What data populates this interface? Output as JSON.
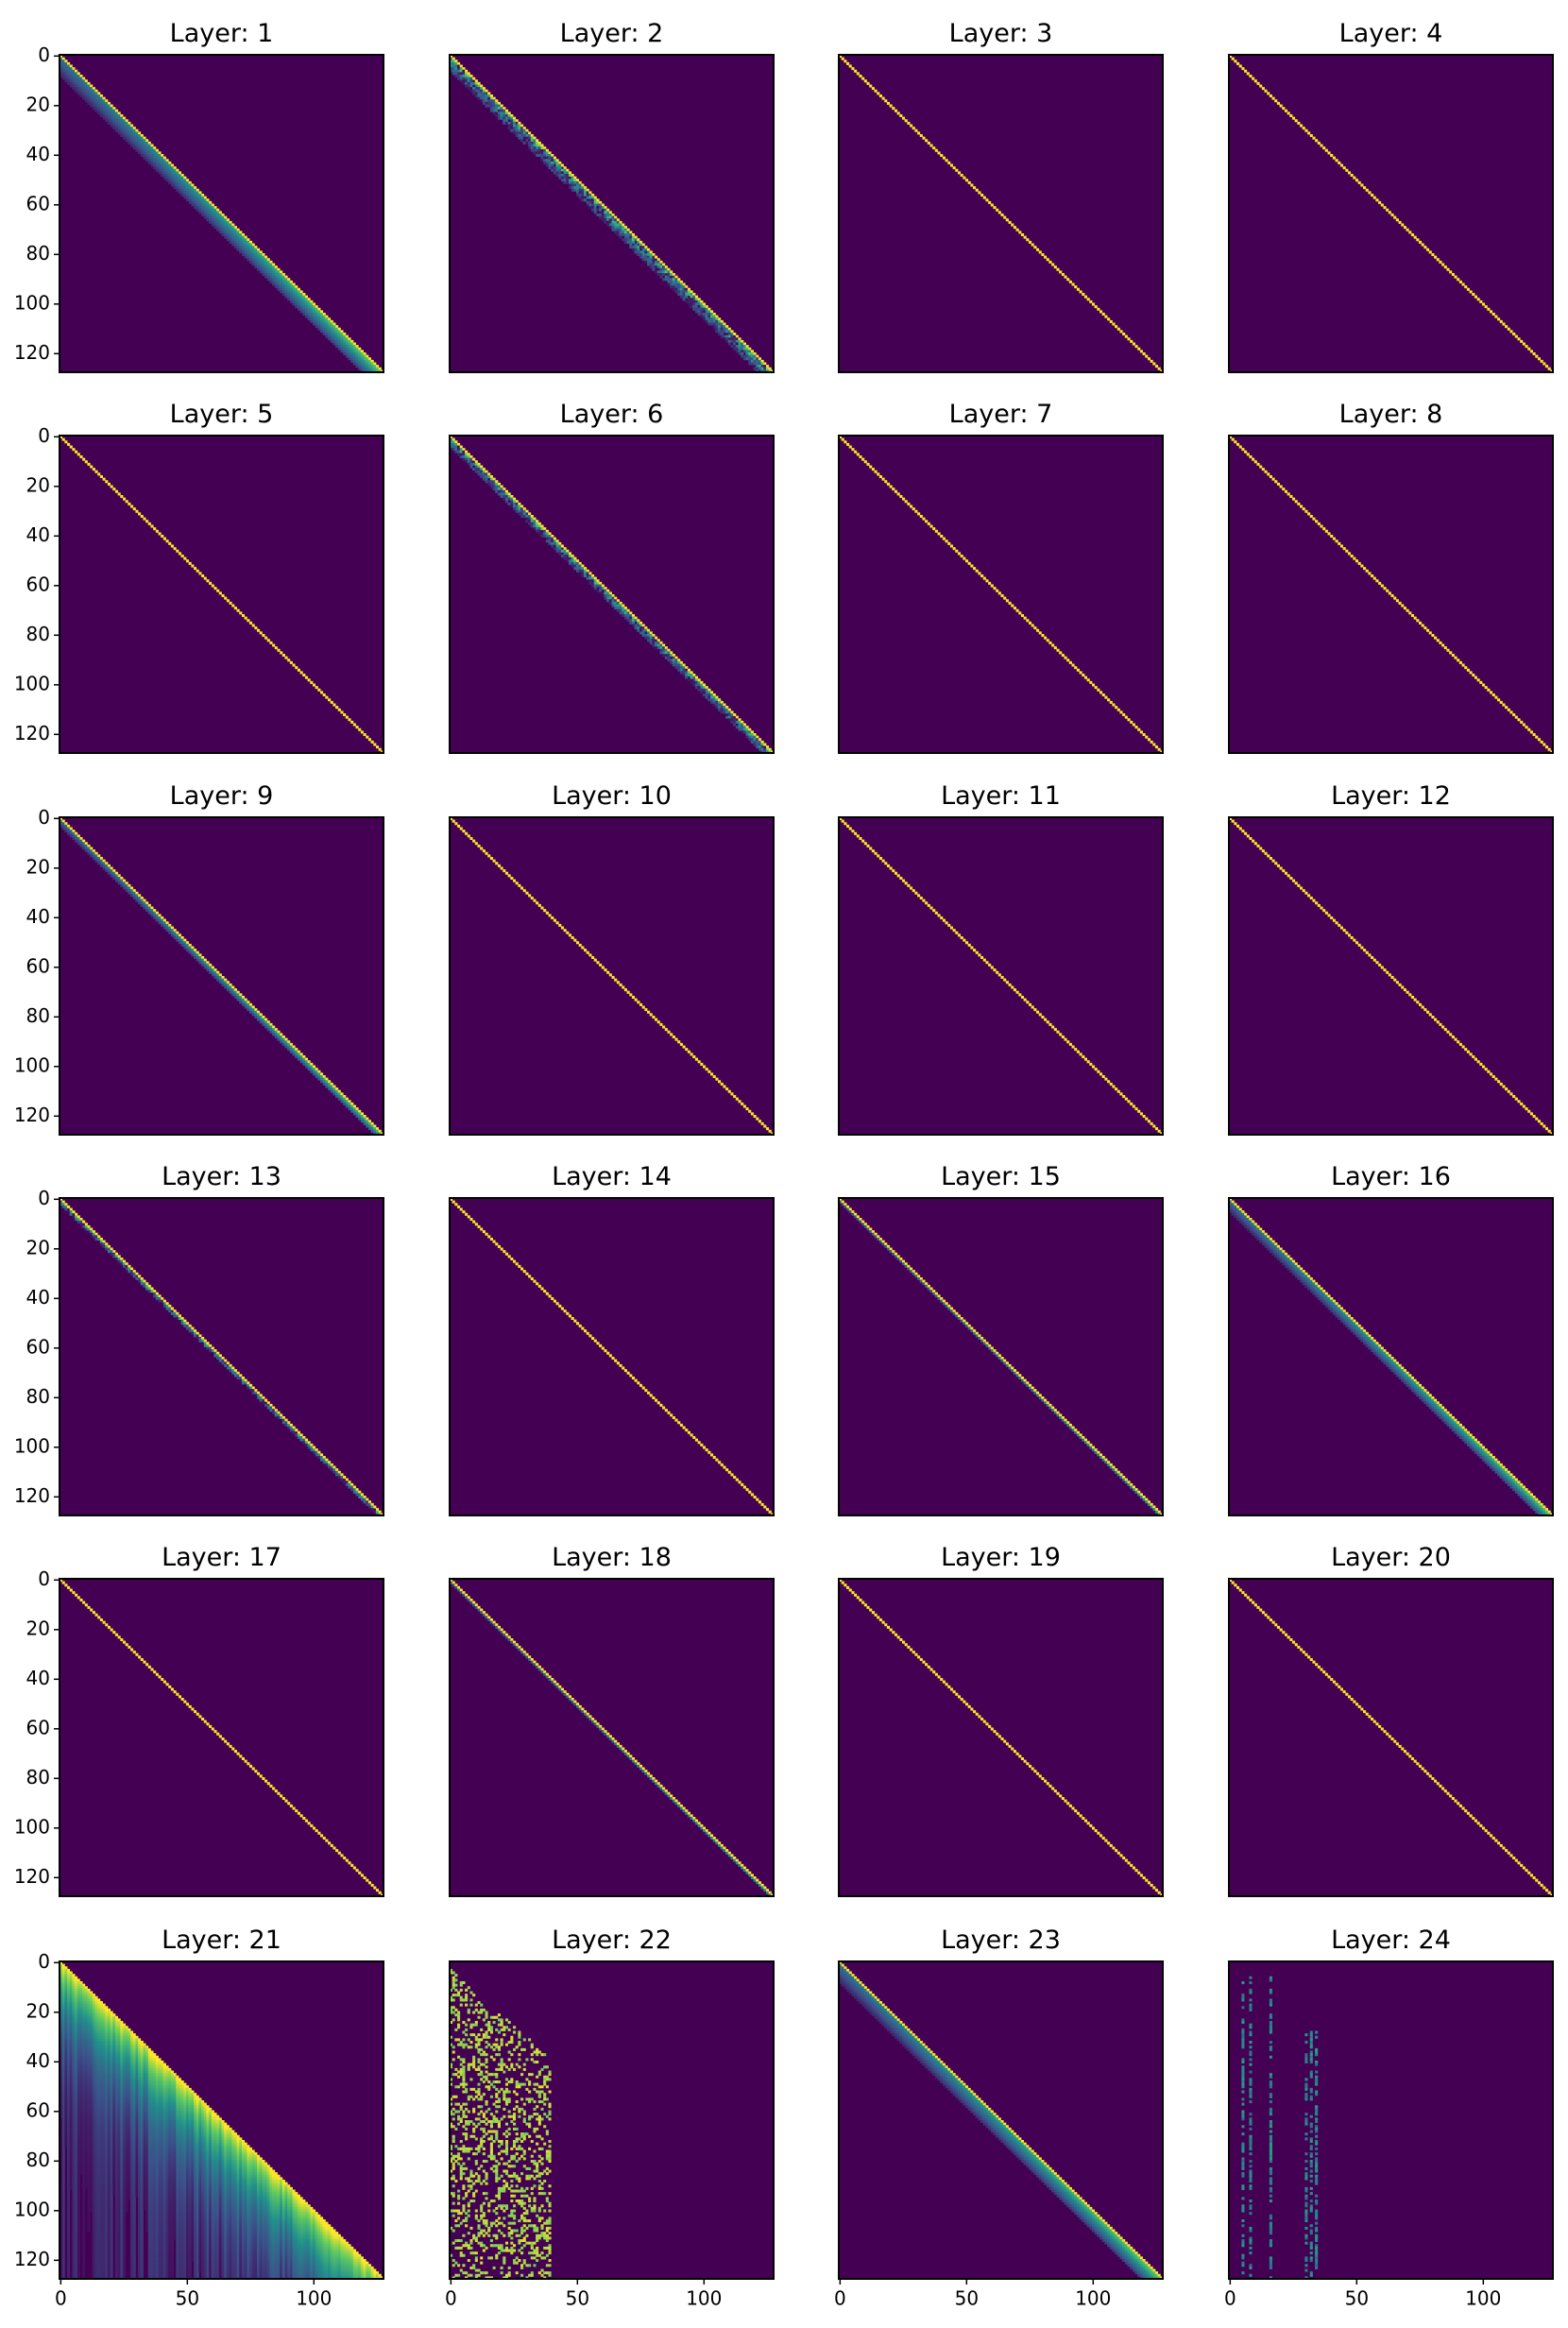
{
  "colormap": [
    "#440154",
    "#3b528b",
    "#21918c",
    "#5ec962",
    "#fde725"
  ],
  "chart_data": [
    {
      "type": "heatmap",
      "title": "Layer: 1",
      "size": 128,
      "pattern": "band",
      "band": 9,
      "yticks": [
        0,
        20,
        40,
        60,
        80,
        100,
        120
      ]
    },
    {
      "type": "heatmap",
      "title": "Layer: 2",
      "size": 128,
      "pattern": "noisy",
      "band": 7
    },
    {
      "type": "heatmap",
      "title": "Layer: 3",
      "size": 128,
      "pattern": "band",
      "band": 1
    },
    {
      "type": "heatmap",
      "title": "Layer: 4",
      "size": 128,
      "pattern": "band",
      "band": 1
    },
    {
      "type": "heatmap",
      "title": "Layer: 5",
      "size": 128,
      "pattern": "band",
      "band": 1,
      "yticks": [
        0,
        20,
        40,
        60,
        80,
        100,
        120
      ]
    },
    {
      "type": "heatmap",
      "title": "Layer: 6",
      "size": 128,
      "pattern": "noisy",
      "band": 5
    },
    {
      "type": "heatmap",
      "title": "Layer: 7",
      "size": 128,
      "pattern": "band",
      "band": 1
    },
    {
      "type": "heatmap",
      "title": "Layer: 8",
      "size": 128,
      "pattern": "band",
      "band": 1
    },
    {
      "type": "heatmap",
      "title": "Layer: 9",
      "size": 128,
      "pattern": "band",
      "band": 4,
      "yticks": [
        0,
        20,
        40,
        60,
        80,
        100,
        120
      ]
    },
    {
      "type": "heatmap",
      "title": "Layer: 10",
      "size": 128,
      "pattern": "band",
      "band": 1
    },
    {
      "type": "heatmap",
      "title": "Layer: 11",
      "size": 128,
      "pattern": "band",
      "band": 1
    },
    {
      "type": "heatmap",
      "title": "Layer: 12",
      "size": 128,
      "pattern": "band",
      "band": 1
    },
    {
      "type": "heatmap",
      "title": "Layer: 13",
      "size": 128,
      "pattern": "noisy",
      "band": 3,
      "yticks": [
        0,
        20,
        40,
        60,
        80,
        100,
        120
      ]
    },
    {
      "type": "heatmap",
      "title": "Layer: 14",
      "size": 128,
      "pattern": "band",
      "band": 1
    },
    {
      "type": "heatmap",
      "title": "Layer: 15",
      "size": 128,
      "pattern": "band",
      "band": 2
    },
    {
      "type": "heatmap",
      "title": "Layer: 16",
      "size": 128,
      "pattern": "band",
      "band": 6
    },
    {
      "type": "heatmap",
      "title": "Layer: 17",
      "size": 128,
      "pattern": "band",
      "band": 1,
      "yticks": [
        0,
        20,
        40,
        60,
        80,
        100,
        120
      ]
    },
    {
      "type": "heatmap",
      "title": "Layer: 18",
      "size": 128,
      "pattern": "band",
      "band": 2
    },
    {
      "type": "heatmap",
      "title": "Layer: 19",
      "size": 128,
      "pattern": "band",
      "band": 1
    },
    {
      "type": "heatmap",
      "title": "Layer: 20",
      "size": 128,
      "pattern": "band",
      "band": 1
    },
    {
      "type": "heatmap",
      "title": "Layer: 21",
      "size": 128,
      "pattern": "lower",
      "band": 20,
      "yticks": [
        0,
        20,
        40,
        60,
        80,
        100,
        120
      ],
      "xticks": [
        0,
        50,
        100
      ]
    },
    {
      "type": "heatmap",
      "title": "Layer: 22",
      "size": 128,
      "pattern": "scatter",
      "band": 40,
      "xticks": [
        0,
        50,
        100
      ]
    },
    {
      "type": "heatmap",
      "title": "Layer: 23",
      "size": 128,
      "pattern": "band",
      "band": 9,
      "xticks": [
        0,
        50,
        100
      ]
    },
    {
      "type": "heatmap",
      "title": "Layer: 24",
      "size": 128,
      "pattern": "columns",
      "band": 36,
      "xticks": [
        0,
        50,
        100
      ]
    }
  ]
}
